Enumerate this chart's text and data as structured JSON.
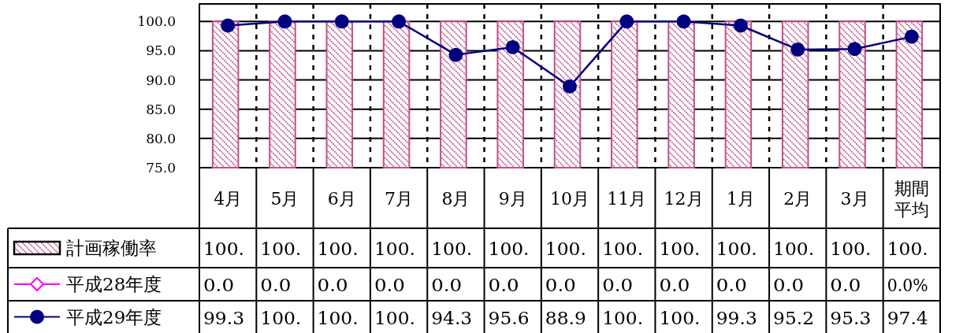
{
  "chart_data": {
    "type": "bar",
    "categories": [
      "4月",
      "5月",
      "6月",
      "7月",
      "8月",
      "9月",
      "10月",
      "11月",
      "12月",
      "1月",
      "2月",
      "3月",
      "期間平均"
    ],
    "ylim": [
      75,
      103
    ],
    "yticks": [
      {
        "value": 75,
        "label": "75.0"
      },
      {
        "value": 80,
        "label": "80.0"
      },
      {
        "value": 85,
        "label": "85.0"
      },
      {
        "value": 90,
        "label": "90.0"
      },
      {
        "value": 95,
        "label": "95.0"
      },
      {
        "value": 100,
        "label": "100.0"
      }
    ],
    "grid": "y",
    "legend": "bottom left",
    "series": [
      {
        "name": "計画稼働率",
        "color": "#c0508a",
        "values": [
          100,
          100,
          100,
          100,
          100,
          100,
          100,
          100,
          100,
          100,
          100,
          100,
          100
        ],
        "value_labels": [
          "100.",
          "100.",
          "100.",
          "100.",
          "100.",
          "100.",
          "100.",
          "100.",
          "100.",
          "100.",
          "100.",
          "100.",
          "100."
        ]
      },
      {
        "name": "平成28年度",
        "type": "line",
        "color": "#ff00ff",
        "marker": "diamond",
        "values": [
          null,
          null,
          null,
          null,
          null,
          null,
          null,
          null,
          null,
          null,
          null,
          null,
          null
        ],
        "value_labels": [
          "0.0",
          "0.0",
          "0.0",
          "0.0",
          "0.0",
          "0.0",
          "0.0",
          "0.0",
          "0.0",
          "0.0",
          "0.0",
          "0.0",
          "0.0%"
        ]
      },
      {
        "name": "平成29年度",
        "type": "line",
        "color": "#000080",
        "marker": "circle",
        "values": [
          99.3,
          100,
          100,
          100,
          94.3,
          95.6,
          88.9,
          100,
          100,
          99.3,
          95.2,
          95.3,
          97.4
        ],
        "value_labels": [
          "99.3",
          "100.",
          "100.",
          "100.",
          "94.3",
          "95.6",
          "88.9",
          "100.",
          "100.",
          "99.3",
          "95.2",
          "95.3",
          "97.4"
        ]
      }
    ]
  }
}
